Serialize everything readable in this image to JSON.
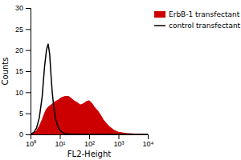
{
  "chart_data": {
    "type": "line",
    "xlabel": "FL2-Height",
    "ylabel": "Counts",
    "log": "x",
    "grid": false,
    "legend": "right",
    "xlim": [
      1,
      10000
    ],
    "ylim": [
      0,
      30
    ],
    "xticks": [
      {
        "value": 1,
        "label": "10⁰"
      },
      {
        "value": 10,
        "label": "10¹"
      },
      {
        "value": 100,
        "label": "10²"
      },
      {
        "value": 1000,
        "label": "10³"
      },
      {
        "value": 10000,
        "label": "10⁴"
      }
    ],
    "yticks": [
      0,
      5,
      10,
      15,
      20,
      25,
      30
    ],
    "series": [
      {
        "name": "ErbB-1 transfectant",
        "type": "area",
        "color": "#cc0000",
        "x": [
          1.0,
          1.3,
          1.6,
          2.0,
          2.5,
          3.0,
          3.5,
          4.0,
          5.0,
          6.0,
          7.0,
          8.0,
          9.0,
          10.0,
          12.0,
          15.0,
          20.0,
          25.0,
          30.0,
          40.0,
          50.0,
          60.0,
          70.0,
          80.0,
          100.0,
          120.0,
          150.0,
          200.0,
          250.0,
          300.0,
          400.0,
          500.0,
          700.0,
          1000.0,
          2000.0,
          5000.0,
          10000.0
        ],
        "values": [
          0,
          0.3,
          0.8,
          2.0,
          3.5,
          5.0,
          6.0,
          6.5,
          7.0,
          7.5,
          7.8,
          8.0,
          8.2,
          8.5,
          8.8,
          9.0,
          9.0,
          8.5,
          8.0,
          7.5,
          7.0,
          7.2,
          7.5,
          7.8,
          8.0,
          7.5,
          6.5,
          5.5,
          4.5,
          3.5,
          2.5,
          1.8,
          1.0,
          0.5,
          0.2,
          0.05,
          0.0
        ]
      },
      {
        "name": "control transfectant",
        "type": "line",
        "color": "#000000",
        "x": [
          1.0,
          1.3,
          1.6,
          2.0,
          2.5,
          3.0,
          3.5,
          4.0,
          4.5,
          5.0,
          5.5,
          6.0,
          6.5,
          7.0,
          8.0,
          9.0,
          10.0,
          12.0,
          15.0,
          20.0,
          50.0,
          10000.0
        ],
        "values": [
          0,
          0.5,
          1.5,
          4.0,
          9.0,
          16.0,
          20.0,
          21.5,
          19.0,
          14.0,
          10.0,
          7.5,
          5.5,
          4.0,
          2.5,
          1.5,
          1.0,
          0.5,
          0.2,
          0.1,
          0.0,
          0.0
        ]
      }
    ]
  }
}
